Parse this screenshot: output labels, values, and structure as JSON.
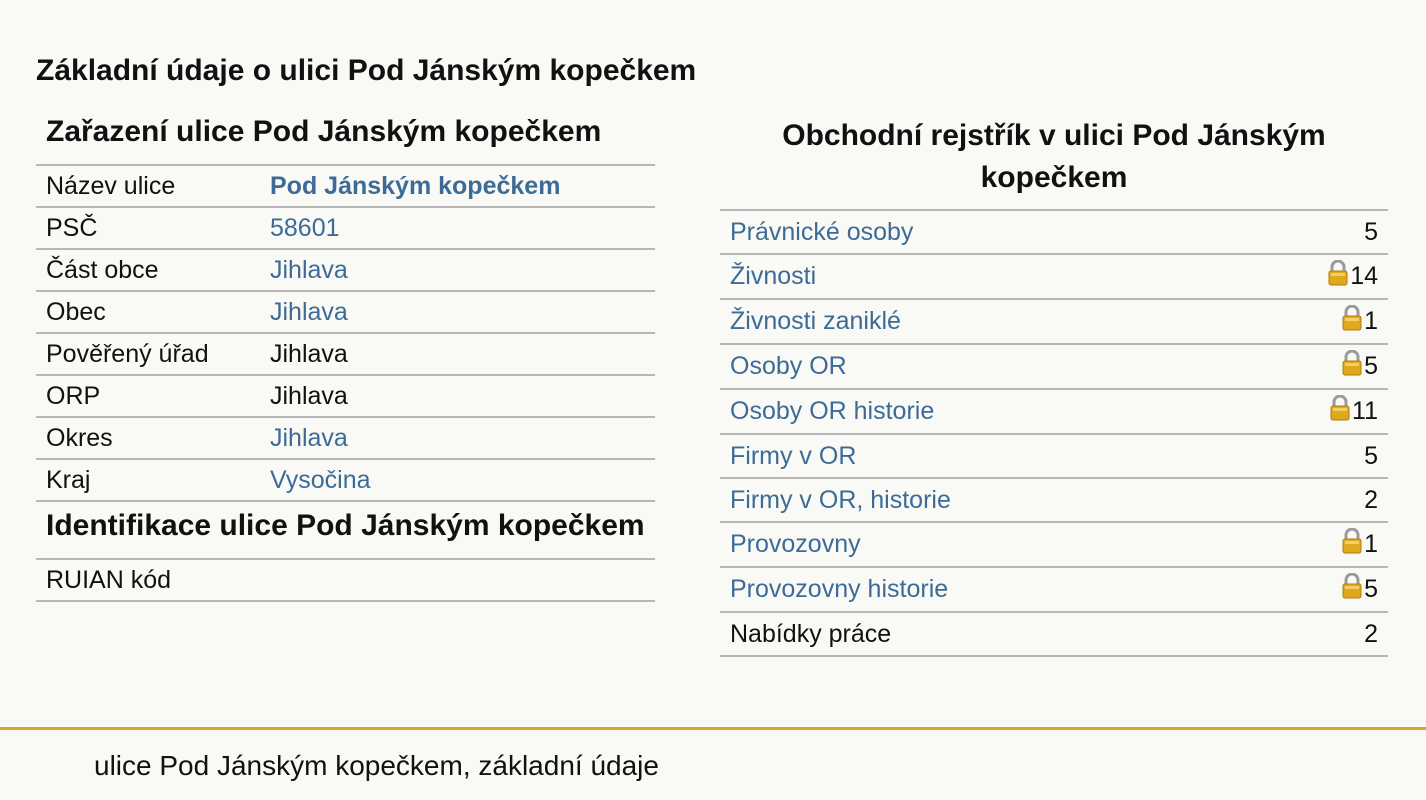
{
  "page": {
    "title": "Základní údaje o ulici Pod Jánským kopečkem"
  },
  "zarazeni": {
    "title": "Zařazení ulice Pod Jánským kopečkem",
    "rows": [
      {
        "key": "Název ulice",
        "value": "Pod Jánským kopečkem"
      },
      {
        "key": "PSČ",
        "value": "58601"
      },
      {
        "key": "Část obce",
        "value": "Jihlava"
      },
      {
        "key": "Obec",
        "value": "Jihlava"
      },
      {
        "key": "Pověřený úřad",
        "value": "Jihlava"
      },
      {
        "key": "ORP",
        "value": "Jihlava"
      },
      {
        "key": "Okres",
        "value": "Jihlava"
      },
      {
        "key": "Kraj",
        "value": "Vysočina"
      }
    ]
  },
  "identifikace": {
    "title": "Identifikace ulice Pod Jánským kopečkem",
    "rows": [
      {
        "key": "RUIAN kód",
        "value": ""
      }
    ]
  },
  "rejstrik": {
    "title": "Obchodní rejstřík v ulici Pod Jánským kopečkem",
    "rows": [
      {
        "label": "Právnické osoby",
        "count": "5",
        "locked": false
      },
      {
        "label": "Živnosti",
        "count": "14",
        "locked": true
      },
      {
        "label": "Živnosti zaniklé",
        "count": "1",
        "locked": true
      },
      {
        "label": "Osoby OR",
        "count": "5",
        "locked": true
      },
      {
        "label": "Osoby OR historie",
        "count": "11",
        "locked": true
      },
      {
        "label": "Firmy v OR",
        "count": "5",
        "locked": false
      },
      {
        "label": "Firmy v OR, historie",
        "count": "2",
        "locked": false
      },
      {
        "label": "Provozovny",
        "count": "1",
        "locked": true
      },
      {
        "label": "Provozovny historie",
        "count": "5",
        "locked": true
      },
      {
        "label": "Nabídky práce",
        "count": "2",
        "locked": false
      }
    ],
    "lock_icon": "padlock-icon"
  },
  "footer": {
    "text": "ulice Pod Jánským kopečkem, základní údaje"
  },
  "colors": {
    "link": "#3d6b98",
    "accent_line": "#d8a82a",
    "background": "#f9f9f5",
    "lock_gold": "#e0a81c"
  }
}
